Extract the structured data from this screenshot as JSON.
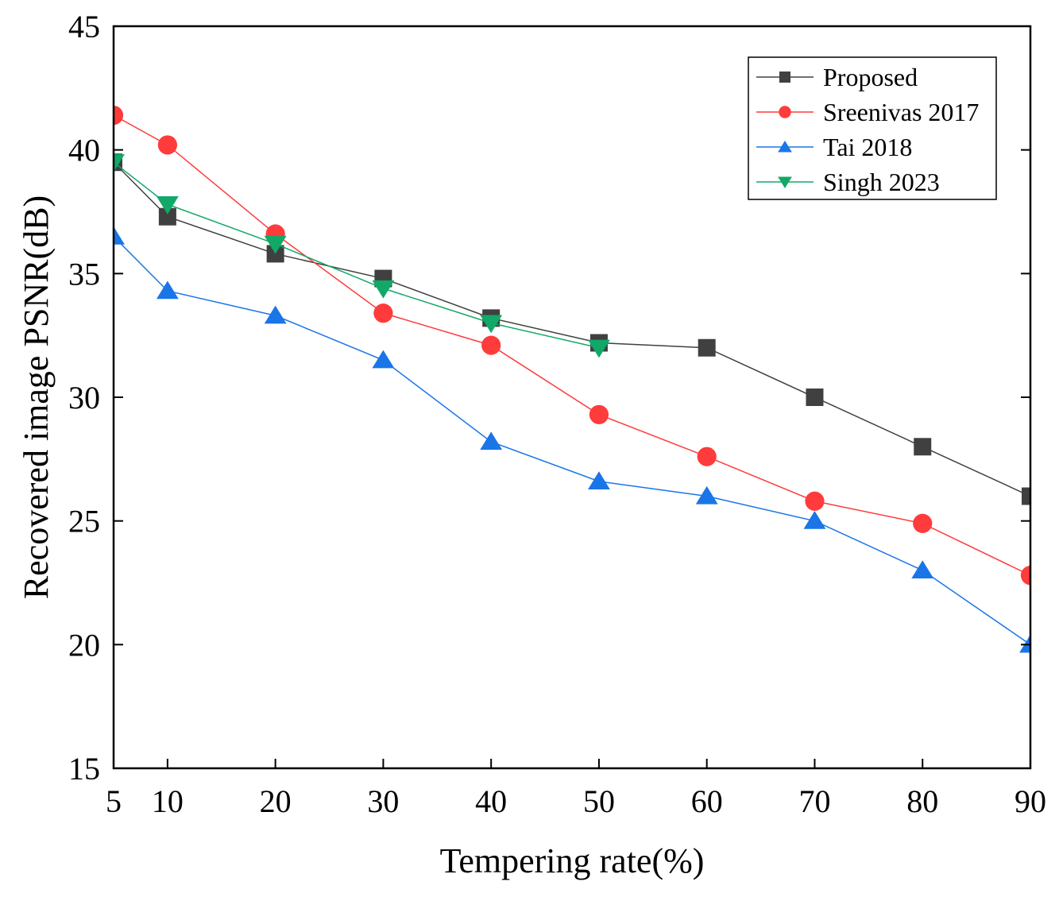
{
  "chart_data": {
    "type": "line",
    "title": "",
    "xlabel": "Tempering rate(%)",
    "ylabel": "Recovered image PSNR(dB)",
    "xlim": [
      5,
      90
    ],
    "ylim": [
      15,
      45
    ],
    "xticks": [
      5,
      10,
      20,
      30,
      40,
      50,
      60,
      70,
      80,
      90
    ],
    "yticks": [
      15,
      20,
      25,
      30,
      35,
      40,
      45
    ],
    "grid": false,
    "legend_position": "top-right",
    "series": [
      {
        "name": "Proposed",
        "color": "#404040",
        "marker": "square",
        "x": [
          5,
          10,
          20,
          30,
          40,
          50,
          60,
          70,
          80,
          90
        ],
        "y": [
          39.5,
          37.3,
          35.8,
          34.8,
          33.2,
          32.2,
          32.0,
          30.0,
          28.0,
          26.0
        ]
      },
      {
        "name": "Sreenivas 2017",
        "color": "#ff3b3b",
        "marker": "circle",
        "x": [
          5,
          10,
          20,
          30,
          40,
          50,
          60,
          70,
          80,
          90
        ],
        "y": [
          41.4,
          40.2,
          36.6,
          33.4,
          32.1,
          29.3,
          27.6,
          25.8,
          24.9,
          22.8
        ]
      },
      {
        "name": "Tai 2018",
        "color": "#1a75e8",
        "marker": "triangle-up",
        "x": [
          5,
          10,
          20,
          30,
          40,
          50,
          60,
          70,
          80,
          90
        ],
        "y": [
          36.5,
          34.3,
          33.3,
          31.5,
          28.2,
          26.6,
          26.0,
          25.0,
          23.0,
          20.0
        ]
      },
      {
        "name": "Singh 2023",
        "color": "#12a868",
        "marker": "triangle-down",
        "x": [
          5,
          10,
          20,
          30,
          40,
          50
        ],
        "y": [
          39.5,
          37.8,
          36.2,
          34.4,
          33.0,
          32.0
        ]
      }
    ]
  }
}
